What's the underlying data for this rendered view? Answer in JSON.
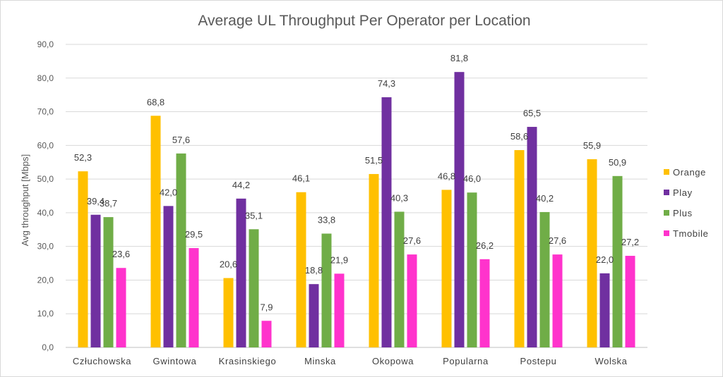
{
  "chart_data": {
    "type": "bar",
    "title": "Average UL Throughput Per Operator per Location",
    "ylabel": "Avg throughput [Mbps]",
    "xlabel": "",
    "ylim": [
      0,
      90
    ],
    "ytick_step": 10,
    "ytick_labels": [
      "0,0",
      "10,0",
      "20,0",
      "30,0",
      "40,0",
      "50,0",
      "60,0",
      "70,0",
      "80,0",
      "90,0"
    ],
    "grid": true,
    "legend_position": "right",
    "categories": [
      "Człuchowska",
      "Gwintowa",
      "Krasinskiego",
      "Minska",
      "Okopowa",
      "Popularna",
      "Postepu",
      "Wolska"
    ],
    "series": [
      {
        "name": "Orange",
        "color": "#FFC000",
        "values": [
          52.3,
          68.8,
          20.6,
          46.1,
          51.5,
          46.8,
          58.6,
          55.9
        ],
        "labels": [
          "52,3",
          "68,8",
          "20,6",
          "46,1",
          "51,5",
          "46,8",
          "58,6",
          "55,9"
        ]
      },
      {
        "name": "Play",
        "color": "#7030A0",
        "values": [
          39.4,
          42.0,
          44.2,
          18.8,
          74.3,
          81.8,
          65.5,
          22.0
        ],
        "labels": [
          "39,4",
          "42,0",
          "44,2",
          "18,8",
          "74,3",
          "81,8",
          "65,5",
          "22,0"
        ]
      },
      {
        "name": "Plus",
        "color": "#70AD47",
        "values": [
          38.7,
          57.6,
          35.1,
          33.8,
          40.3,
          46.0,
          40.2,
          50.9
        ],
        "labels": [
          "38,7",
          "57,6",
          "35,1",
          "33,8",
          "40,3",
          "46,0",
          "40,2",
          "50,9"
        ]
      },
      {
        "name": "Tmobile",
        "color": "#FF33CC",
        "values": [
          23.6,
          29.5,
          7.9,
          21.9,
          27.6,
          26.2,
          27.6,
          27.2
        ],
        "labels": [
          "23,6",
          "29,5",
          "7,9",
          "21,9",
          "27,6",
          "26,2",
          "27,6",
          "27,2"
        ]
      }
    ]
  }
}
